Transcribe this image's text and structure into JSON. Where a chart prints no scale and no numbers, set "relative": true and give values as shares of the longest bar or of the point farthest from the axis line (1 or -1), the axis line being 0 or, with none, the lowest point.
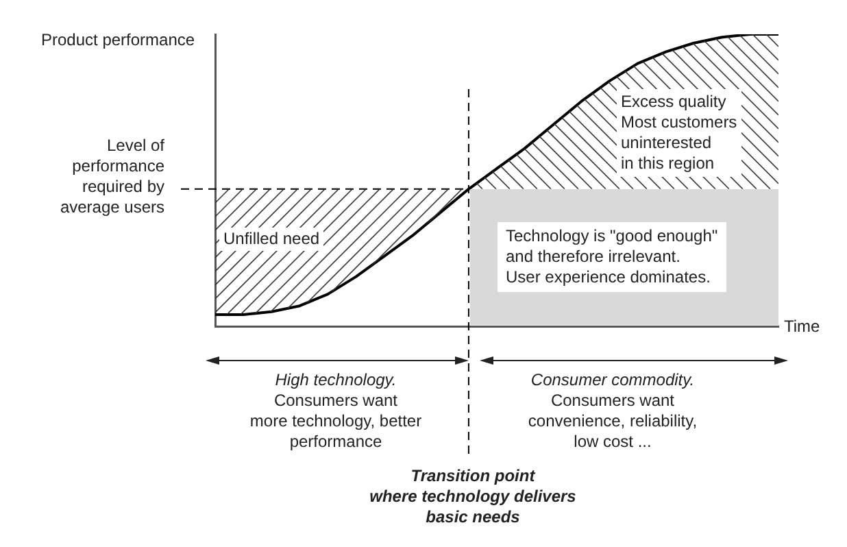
{
  "chart_data": {
    "type": "line",
    "relative": true,
    "ylabel": "Product performance",
    "xlabel": "Time",
    "categories": [
      null,
      null,
      null,
      null,
      null,
      null,
      null,
      null,
      null,
      null,
      null,
      null,
      null,
      null,
      null,
      null,
      null,
      null,
      null,
      null,
      null
    ],
    "series": [
      {
        "color": "#000000",
        "values": [
          0.04,
          0.04,
          0.05,
          0.07,
          0.11,
          0.17,
          0.24,
          0.31,
          0.39,
          0.47,
          0.54,
          0.61,
          0.69,
          0.77,
          0.84,
          0.9,
          0.94,
          0.97,
          0.99,
          1.0,
          1.0
        ]
      }
    ],
    "ref_lines": [
      {
        "axis": "y",
        "value": 0.47,
        "label": "Level of\nperformance\nrequired by\naverage users",
        "line_style": "dashed",
        "color": "#000000"
      }
    ],
    "annotations": [
      "Unfilled need",
      "Excess quality\nMost customers\nuninterested\nin this region",
      "Technology is \"good enough\"\nand therefore irrelevant.\nUser experience dominates.",
      "High technology.\nConsumers want\nmore technology, better\nperformance",
      "Consumer commodity.\nConsumers want\nconvenience, reliability,\nlow cost ...",
      "Transition point\nwhere technology delivers\nbasic needs"
    ]
  }
}
